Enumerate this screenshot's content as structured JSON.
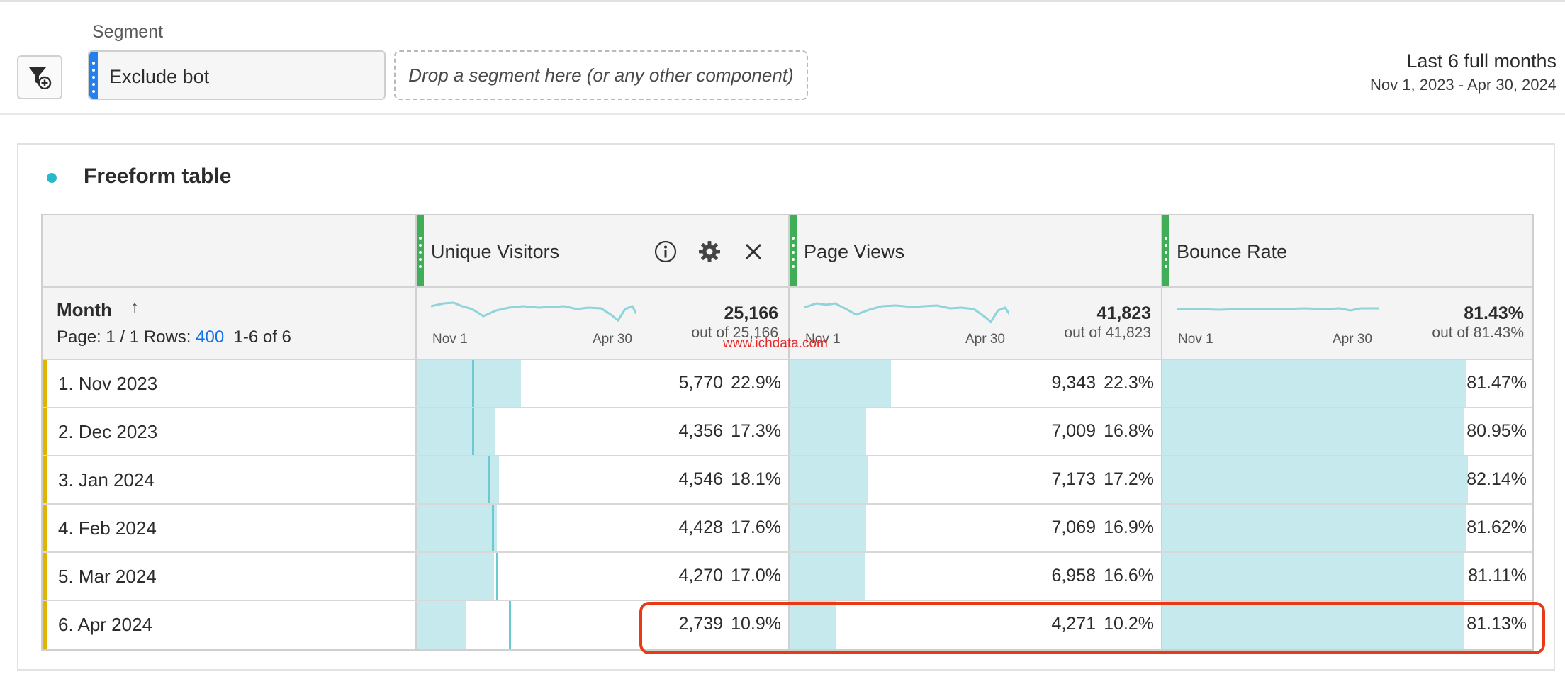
{
  "segment": {
    "label": "Segment",
    "chip_text": "Exclude bot",
    "drop_placeholder": "Drop a segment here (or any other component)"
  },
  "date": {
    "title": "Last 6 full months",
    "range": "Nov 1, 2023 - Apr 30, 2024"
  },
  "panel": {
    "title": "Freeform table"
  },
  "table": {
    "dimension": "Month",
    "pager": {
      "page": "Page: 1 / 1",
      "rows_label": "Rows:",
      "rows_value": "400",
      "range": "1-6 of 6"
    },
    "columns": [
      {
        "title": "Unique Visitors",
        "total": "25,166",
        "out_of": "out of 25,166",
        "spark_start": "Nov 1",
        "spark_end": "Apr 30"
      },
      {
        "title": "Page Views",
        "total": "41,823",
        "out_of": "out of 41,823",
        "spark_start": "Nov 1",
        "spark_end": "Apr 30"
      },
      {
        "title": "Bounce Rate",
        "total": "81.43%",
        "out_of": "out of 81.43%",
        "spark_start": "Nov 1",
        "spark_end": "Apr 30"
      }
    ],
    "rows": [
      {
        "label": "1.  Nov 2023",
        "uv": "5,770",
        "uv_pct": "22.9%",
        "pv": "9,343",
        "pv_pct": "22.3%",
        "br": "81.47%",
        "uv_share": 0.229,
        "pv_share": 0.223,
        "br_share": 0.8147
      },
      {
        "label": "2.  Dec 2023",
        "uv": "4,356",
        "uv_pct": "17.3%",
        "pv": "7,009",
        "pv_pct": "16.8%",
        "br": "80.95%",
        "uv_share": 0.173,
        "pv_share": 0.168,
        "br_share": 0.8095
      },
      {
        "label": "3.  Jan 2024",
        "uv": "4,546",
        "uv_pct": "18.1%",
        "pv": "7,173",
        "pv_pct": "17.2%",
        "br": "82.14%",
        "uv_share": 0.181,
        "pv_share": 0.172,
        "br_share": 0.8214
      },
      {
        "label": "4.  Feb 2024",
        "uv": "4,428",
        "uv_pct": "17.6%",
        "pv": "7,069",
        "pv_pct": "16.9%",
        "br": "81.62%",
        "uv_share": 0.176,
        "pv_share": 0.169,
        "br_share": 0.8162
      },
      {
        "label": "5.  Mar 2024",
        "uv": "4,270",
        "uv_pct": "17.0%",
        "pv": "6,958",
        "pv_pct": "16.6%",
        "br": "81.11%",
        "uv_share": 0.17,
        "pv_share": 0.166,
        "br_share": 0.8111
      },
      {
        "label": "6.  Apr 2024",
        "uv": "2,739",
        "uv_pct": "10.9%",
        "pv": "4,271",
        "pv_pct": "10.2%",
        "br": "81.13%",
        "uv_share": 0.109,
        "pv_share": 0.102,
        "br_share": 0.8113
      }
    ]
  },
  "watermark": "www.ichdata.com",
  "colors": {
    "accent_blue": "#1473e6",
    "bar_fill": "#c5e9ec",
    "column_grip": "#3fae56",
    "row_accent": "#e0b400",
    "highlight": "#e83a17"
  }
}
